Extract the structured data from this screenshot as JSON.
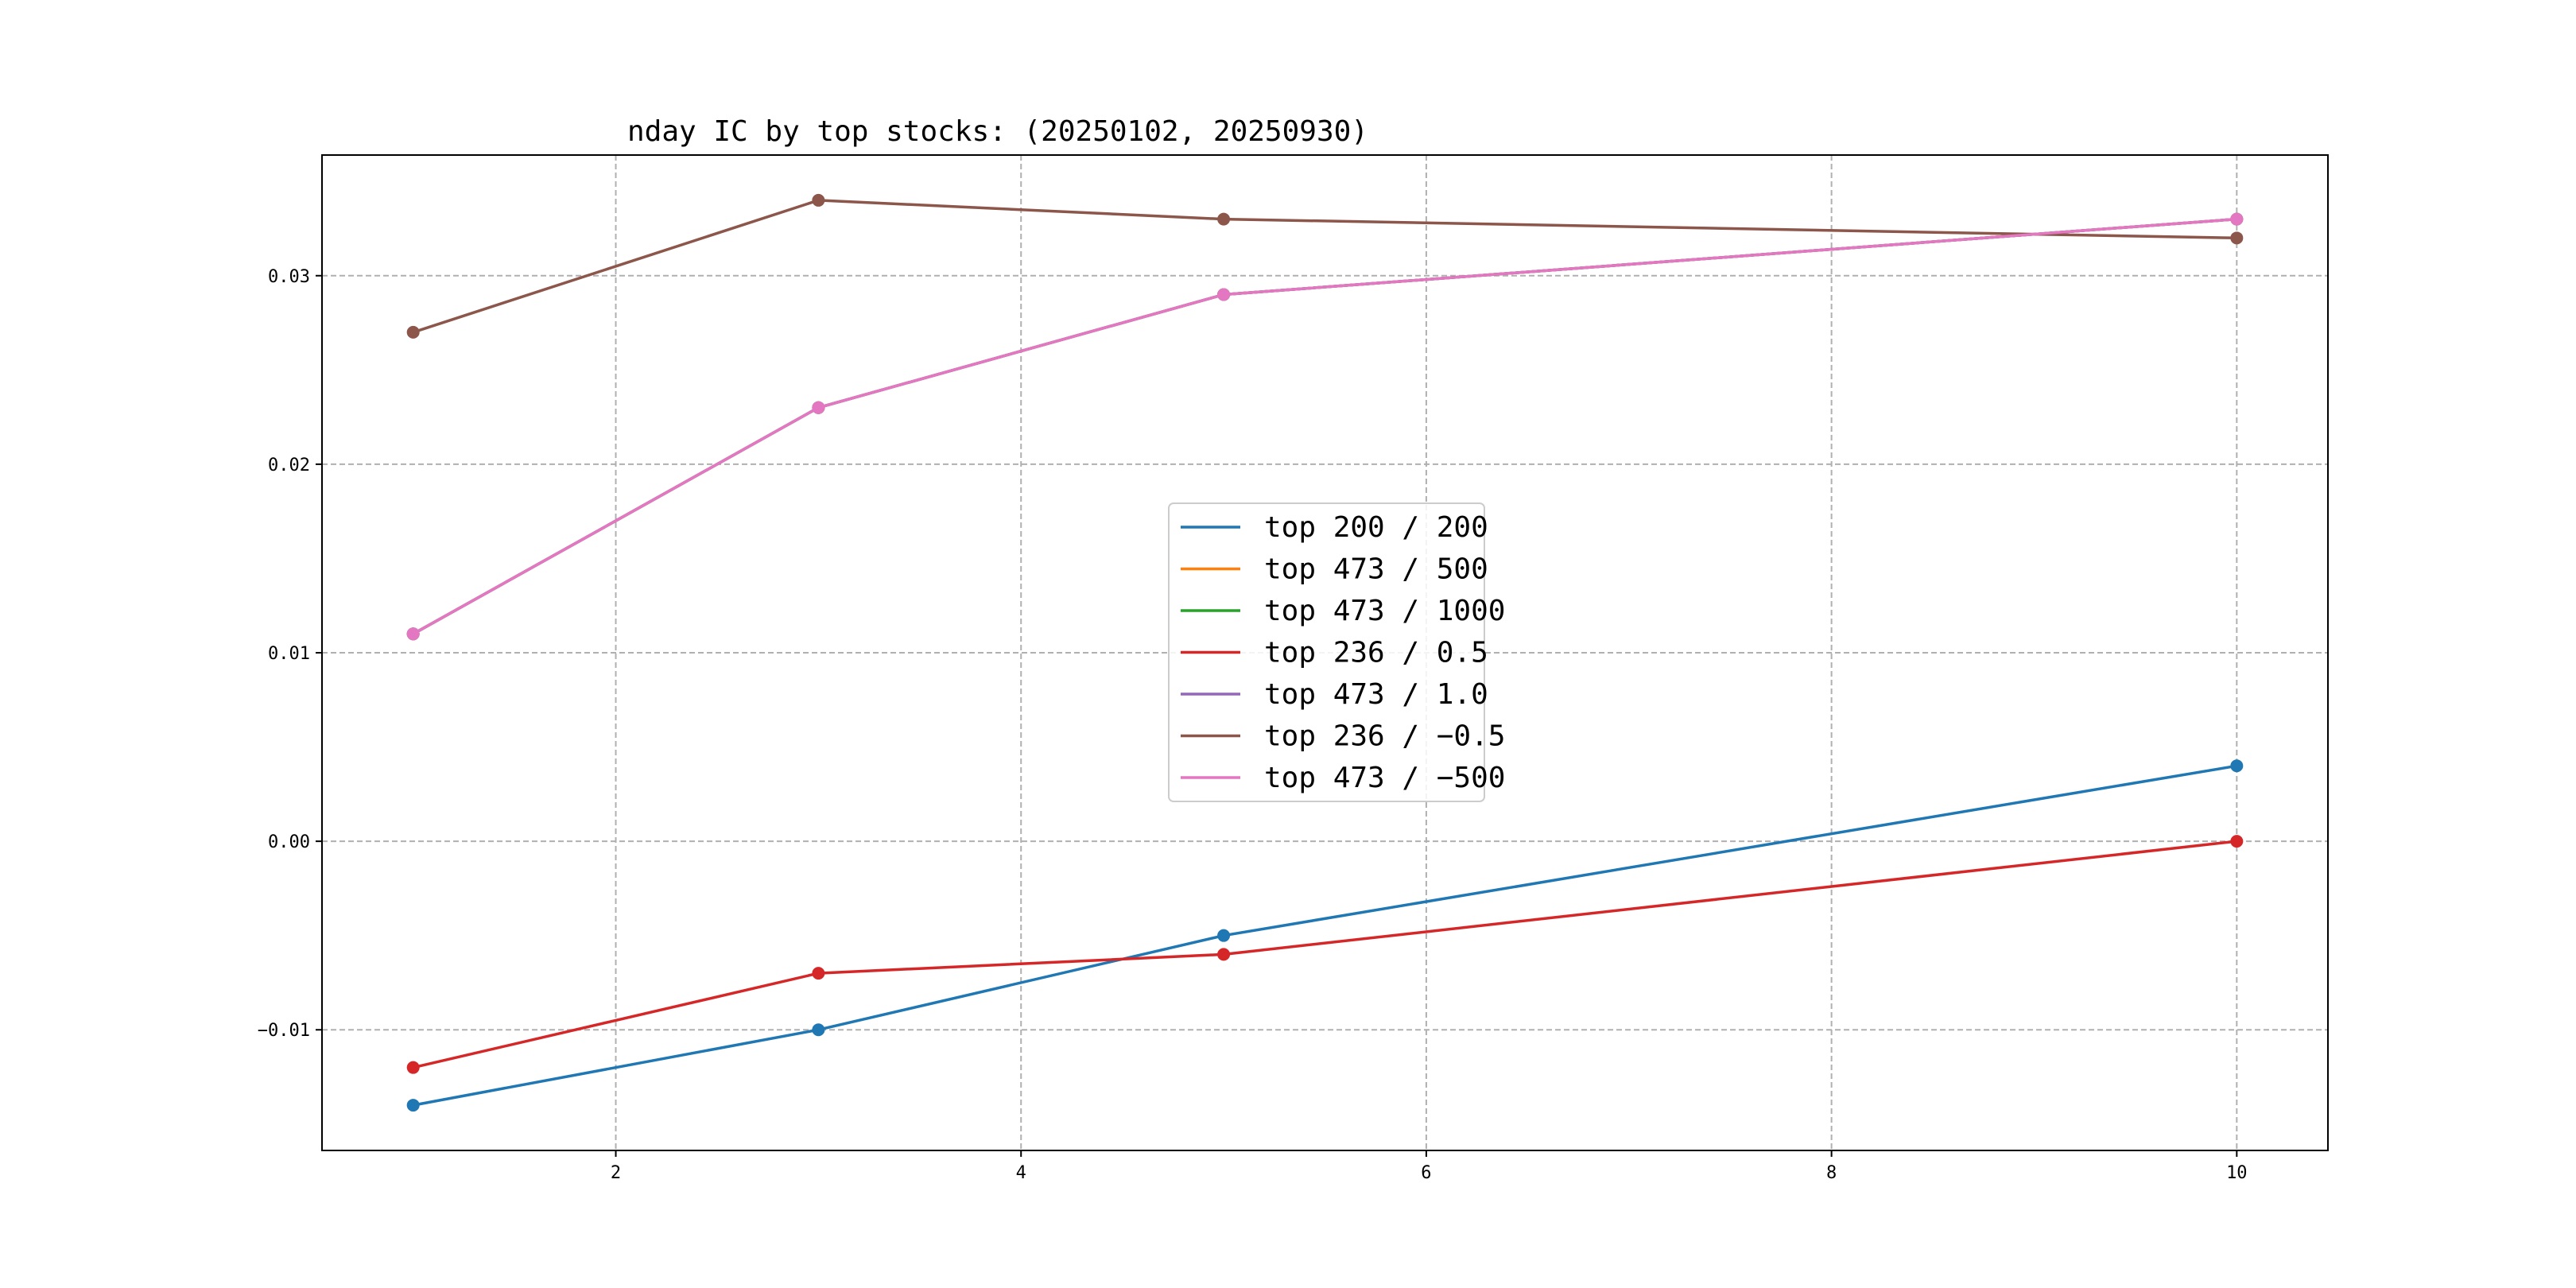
{
  "chart_data": {
    "type": "line",
    "title": "nday IC by top stocks: (20250102, 20250930)",
    "xlabel": "",
    "ylabel": "",
    "x": [
      1,
      3,
      5,
      10
    ],
    "xlim": [
      0.55,
      10.45
    ],
    "ylim": [
      -0.0164,
      0.0364
    ],
    "xticks": [
      2,
      4,
      6,
      8,
      10
    ],
    "xtick_labels": [
      "2",
      "4",
      "6",
      "8",
      "10"
    ],
    "yticks": [
      -0.01,
      0.0,
      0.01,
      0.02,
      0.03
    ],
    "ytick_labels": [
      "−0.01",
      "0.00",
      "0.01",
      "0.02",
      "0.03"
    ],
    "grid": true,
    "legend_position": "center",
    "series": [
      {
        "name": "top 200 / 200",
        "color": "#1f77b4",
        "values": [
          -0.014,
          -0.01,
          -0.005,
          0.004
        ]
      },
      {
        "name": "top 473 / 500",
        "color": "#ff7f0e",
        "values": [
          0.011,
          0.023,
          0.029,
          0.033
        ]
      },
      {
        "name": "top 473 / 1000",
        "color": "#2ca02c",
        "values": [
          0.011,
          0.023,
          0.029,
          0.033
        ]
      },
      {
        "name": "top 236 / 0.5",
        "color": "#d62728",
        "values": [
          -0.012,
          -0.007,
          -0.006,
          0.0
        ]
      },
      {
        "name": "top 473 / 1.0",
        "color": "#9467bd",
        "values": [
          0.011,
          0.023,
          0.029,
          0.033
        ]
      },
      {
        "name": "top 236 / −0.5",
        "color": "#8c564b",
        "values": [
          0.027,
          0.034,
          0.033,
          0.032
        ]
      },
      {
        "name": "top 473 / −500",
        "color": "#e377c2",
        "values": [
          0.011,
          0.023,
          0.029,
          0.033
        ]
      }
    ]
  }
}
